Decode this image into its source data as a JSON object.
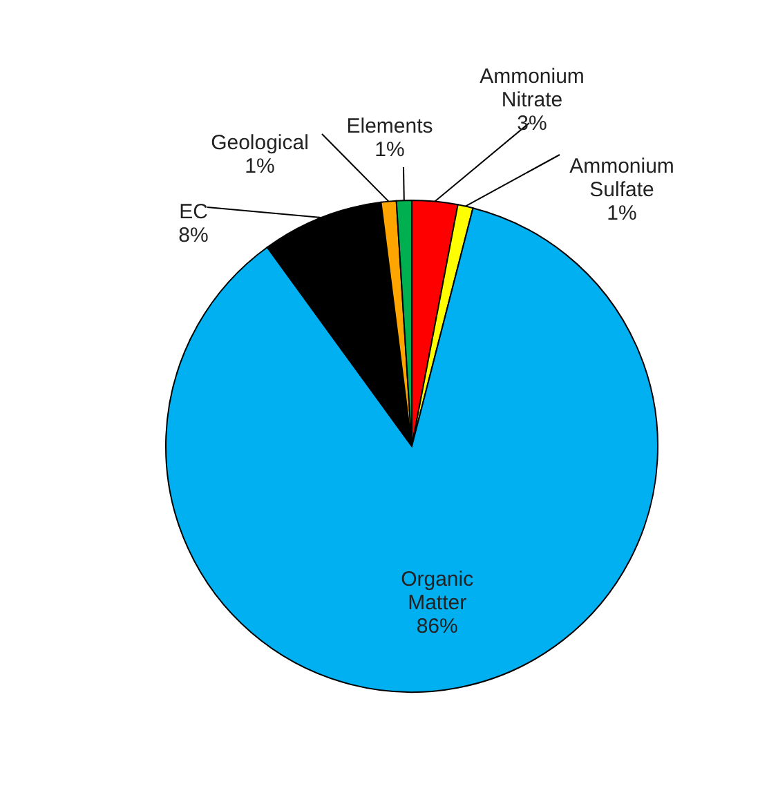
{
  "chart_data": {
    "type": "pie",
    "categories": [
      "Ammonium Nitrate",
      "Ammonium Sulfate",
      "Organic Matter",
      "EC",
      "Geological",
      "Elements"
    ],
    "values": [
      3,
      1,
      86,
      8,
      1,
      1
    ],
    "colors": [
      "#ff0000",
      "#ffff00",
      "#00b0f0",
      "#000000",
      "#ffa500",
      "#00b050"
    ],
    "value_labels": [
      "3%",
      "1%",
      "86%",
      "8%",
      "1%",
      "1%"
    ]
  }
}
